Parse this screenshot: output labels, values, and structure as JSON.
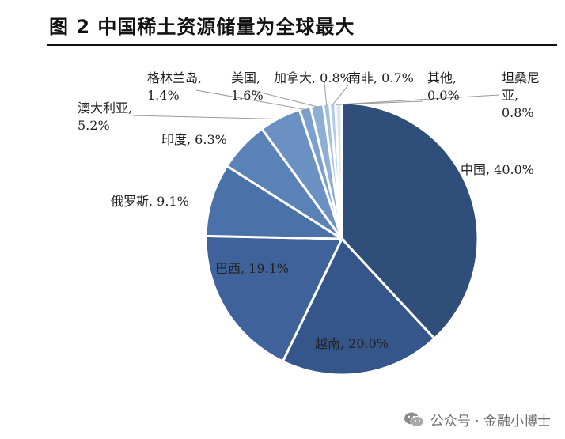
{
  "figure": {
    "title": "图 2 中国稀土资源储量为全球最大"
  },
  "watermark": {
    "text": "公众号 · 金融小博士",
    "icon": "wechat-icon"
  },
  "chart_data": {
    "type": "pie",
    "title": "",
    "start_angle": "top",
    "direction": "clockwise",
    "slices": [
      {
        "name": "中国",
        "value": 40.0,
        "label": "中国, 40.0%",
        "color": "#2f4f7a"
      },
      {
        "name": "越南",
        "value": 20.0,
        "label": "越南, 20.0%",
        "color": "#35568a"
      },
      {
        "name": "巴西",
        "value": 19.1,
        "label": "巴西, 19.1%",
        "color": "#3e6299"
      },
      {
        "name": "俄罗斯",
        "value": 9.1,
        "label": "俄罗斯, 9.1%",
        "color": "#4b72a8"
      },
      {
        "name": "印度",
        "value": 6.3,
        "label": "印度, 6.3%",
        "color": "#5a82b6"
      },
      {
        "name": "澳大利亚",
        "value": 5.2,
        "label": "澳大利亚, 5.2%",
        "color": "#6b91c2"
      },
      {
        "name": "格林兰岛",
        "value": 1.4,
        "label": "格林兰岛, 1.4%",
        "color": "#7c9fcb"
      },
      {
        "name": "美国",
        "value": 1.6,
        "label": "美国, 1.6%",
        "color": "#8eafd4"
      },
      {
        "name": "加拿大",
        "value": 0.8,
        "label": "加拿大, 0.8%",
        "color": "#a2bfdc"
      },
      {
        "name": "南非",
        "value": 0.7,
        "label": "南非, 0.7%",
        "color": "#b5cde4"
      },
      {
        "name": "其他",
        "value": 0.0,
        "label": "其他, 0.0%",
        "color": "#c8daeb"
      },
      {
        "name": "坦桑尼亚",
        "value": 0.8,
        "label": "坦桑尼亚, 0.8%",
        "color": "#d9e6f2"
      }
    ]
  }
}
